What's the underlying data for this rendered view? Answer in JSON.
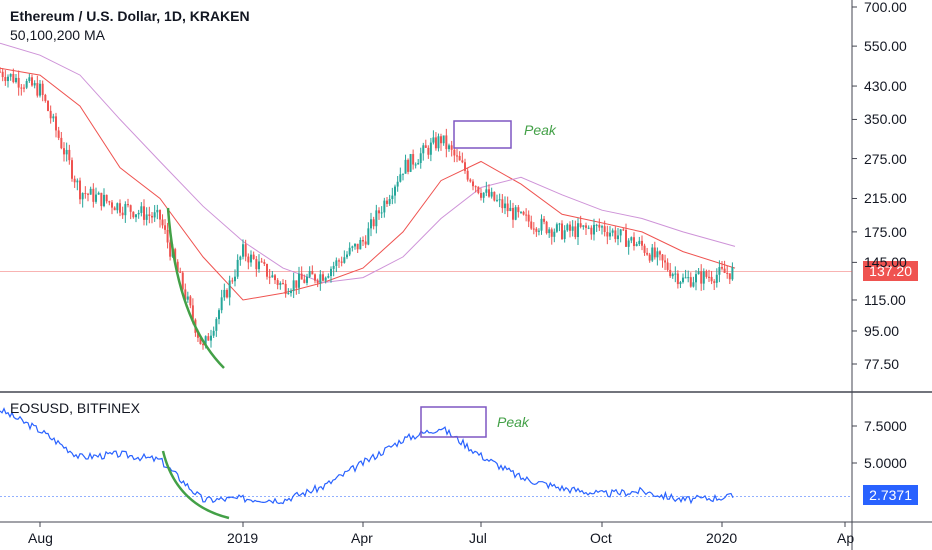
{
  "header": {
    "title": "Ethereum / U.S. Dollar, 1D, KRAKEN",
    "subtitle": "50,100,200 MA"
  },
  "colors": {
    "candle_up": "#26a69a",
    "candle_down": "#ef5350",
    "ma50": "#ef5350",
    "ma100": "#ce93d8",
    "line2": "#2962ff",
    "curve": "#43a047",
    "box": "#7e57c2",
    "last_price_tag": "#ef5350",
    "eos_tag": "#2962ff"
  },
  "lower_panel": {
    "label": "EOSUSD, BITFINEX"
  },
  "price_tag": "137.20",
  "eos_tag": "2.7371",
  "annotations": {
    "peak_top": "Peak",
    "peak_bottom": "Peak"
  },
  "chart_data": [
    {
      "type": "candlestick",
      "title": "Ethereum / U.S. Dollar, 1D, KRAKEN",
      "scale": "log",
      "y_ticks": [
        "700.00",
        "550.00",
        "430.00",
        "350.00",
        "275.00",
        "215.00",
        "175.00",
        "145.00",
        "115.00",
        "95.00",
        "77.50"
      ],
      "x_ticks": [
        "Aug",
        "2019",
        "Apr",
        "Jul",
        "Oct",
        "2020",
        "Ap"
      ],
      "last_value": 137.2,
      "x": [
        "2018-07",
        "2018-08",
        "2018-09",
        "2018-10",
        "2018-11",
        "2018-12",
        "2019-01",
        "2019-02",
        "2019-03",
        "2019-04",
        "2019-05",
        "2019-06",
        "2019-07",
        "2019-08",
        "2019-09",
        "2019-10",
        "2019-11",
        "2019-12",
        "2020-01"
      ],
      "close": [
        470,
        420,
        225,
        205,
        190,
        85,
        155,
        125,
        135,
        165,
        260,
        310,
        225,
        190,
        175,
        180,
        160,
        130,
        137.2
      ],
      "ma_series": [
        {
          "period": "50",
          "values": [
            480,
            460,
            380,
            260,
            215,
            150,
            115,
            120,
            128,
            140,
            175,
            240,
            270,
            235,
            195,
            185,
            175,
            155,
            140
          ]
        },
        {
          "period": "100",
          "values": [
            560,
            520,
            460,
            350,
            270,
            205,
            165,
            140,
            128,
            132,
            150,
            190,
            230,
            245,
            220,
            200,
            190,
            175,
            160
          ]
        }
      ]
    },
    {
      "type": "line",
      "title": "EOSUSD, BITFINEX",
      "y_ticks": [
        "7.5000",
        "5.0000"
      ],
      "x_ticks": [
        "Aug",
        "2019",
        "Apr",
        "Jul",
        "Oct",
        "2020",
        "Ap"
      ],
      "last_value": 2.7371,
      "x": [
        "2018-07",
        "2018-08",
        "2018-09",
        "2018-10",
        "2018-11",
        "2018-12",
        "2019-01",
        "2019-02",
        "2019-03",
        "2019-04",
        "2019-05",
        "2019-06",
        "2019-07",
        "2019-08",
        "2019-09",
        "2019-10",
        "2019-11",
        "2019-12",
        "2020-01"
      ],
      "values": [
        8.6,
        7.2,
        5.4,
        5.6,
        5.2,
        2.5,
        2.6,
        2.5,
        3.4,
        5.0,
        6.6,
        7.4,
        5.5,
        4.0,
        3.3,
        2.9,
        3.1,
        2.5,
        2.74
      ]
    }
  ]
}
